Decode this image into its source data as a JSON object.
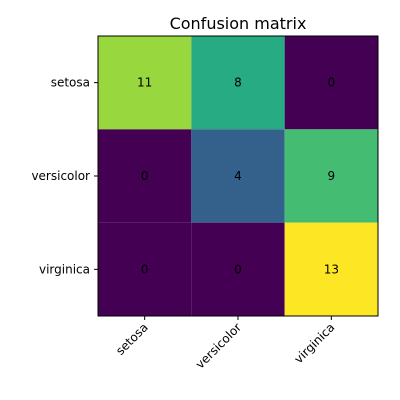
{
  "chart_data": {
    "type": "heatmap",
    "title": "Confusion matrix",
    "row_labels": [
      "setosa",
      "versicolor",
      "virginica"
    ],
    "col_labels": [
      "setosa",
      "versicolor",
      "virginica"
    ],
    "values": [
      [
        11,
        8,
        0
      ],
      [
        0,
        4,
        9
      ],
      [
        0,
        0,
        13
      ]
    ],
    "value_range": [
      0,
      13
    ],
    "colormap": "viridis",
    "grid": false,
    "legend": "none"
  }
}
